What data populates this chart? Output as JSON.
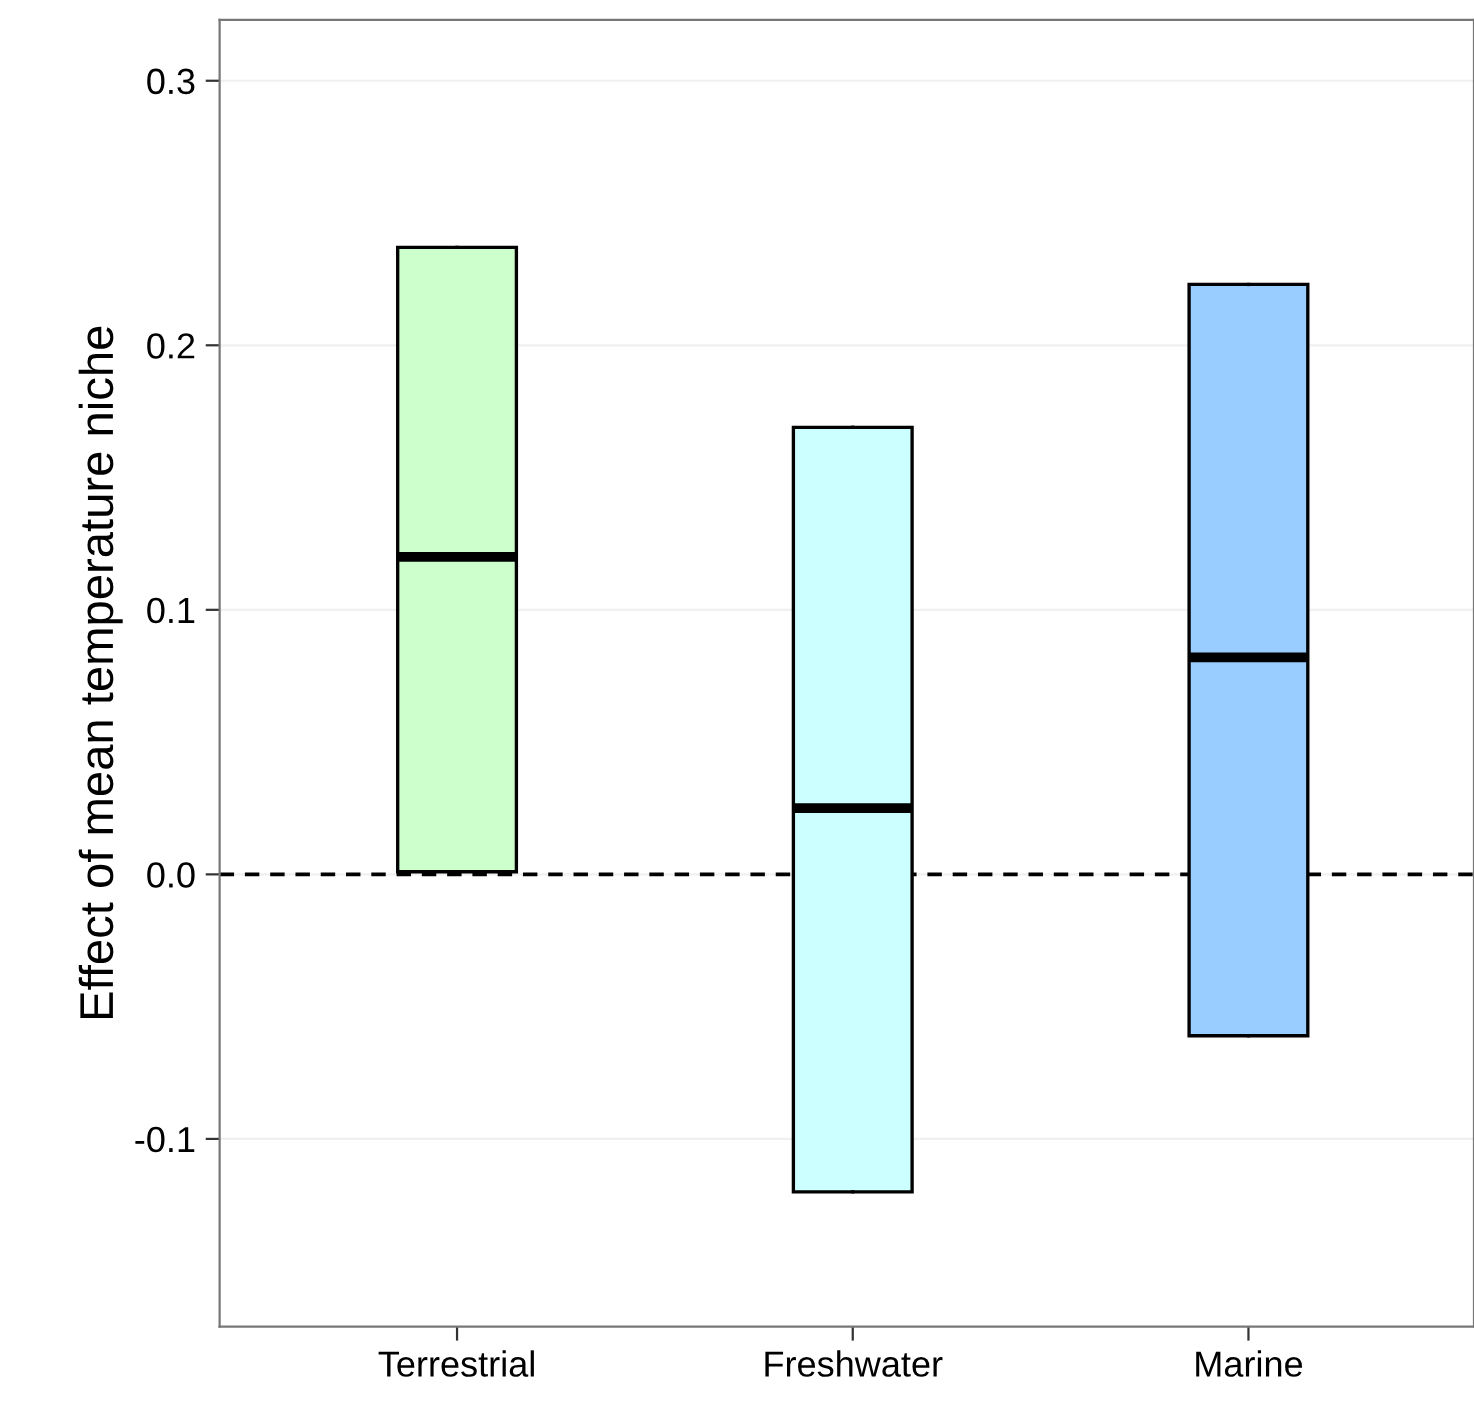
{
  "chart_data": {
    "type": "box",
    "ylabel": "Effect of mean temperature niche",
    "categories": [
      "Terrestrial",
      "Freshwater",
      "Marine"
    ],
    "boxes": [
      {
        "low": 0.001,
        "q1": 0.001,
        "median": 0.12,
        "q3": 0.237,
        "high": 0.237
      },
      {
        "low": -0.12,
        "q1": -0.12,
        "median": 0.025,
        "q3": 0.169,
        "high": 0.169
      },
      {
        "low": -0.061,
        "q1": -0.061,
        "median": 0.082,
        "q3": 0.223,
        "high": 0.223
      }
    ],
    "colors": [
      "#ccffcc",
      "#ccffff",
      "#99ccff"
    ],
    "ylim": [
      -0.171,
      0.323
    ],
    "yticks": [
      {
        "value": -0.1,
        "label": "-0.1"
      },
      {
        "value": 0,
        "label": "0.0"
      },
      0.1,
      0.2,
      0.3
    ],
    "ref_lines": [
      {
        "axis": "y",
        "value": 0,
        "color": "#000000",
        "line_style": "dashed"
      }
    ],
    "grid": "y"
  }
}
